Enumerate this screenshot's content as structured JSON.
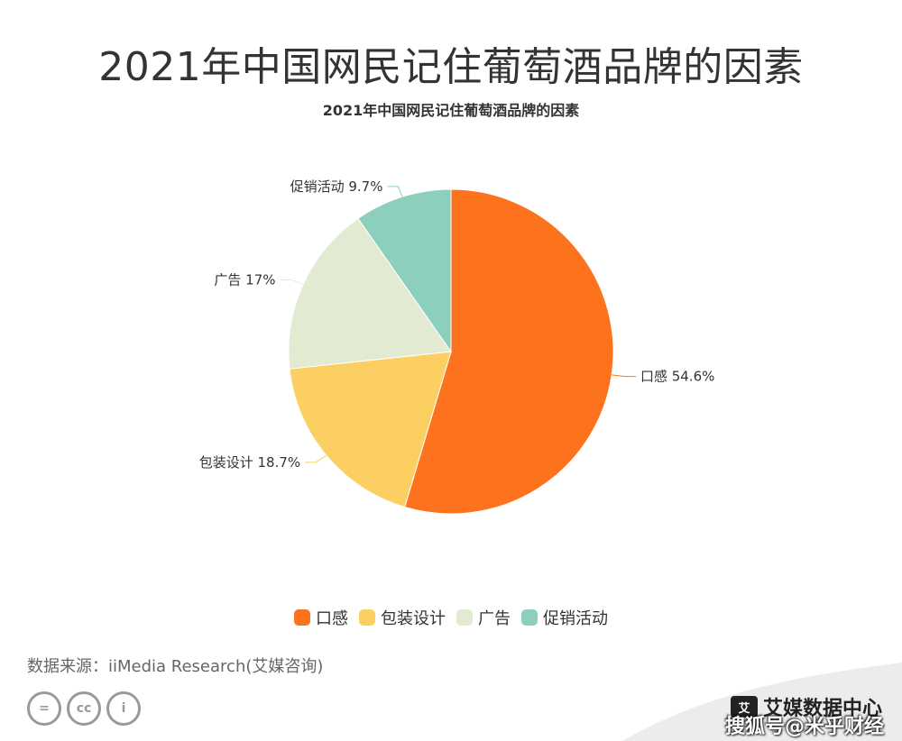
{
  "title": "2021年中国网民记住葡萄酒品牌的因素",
  "chart_data": {
    "type": "pie",
    "title": "2021年中国网民记住葡萄酒品牌的因素",
    "categories": [
      "口感",
      "包装设计",
      "广告",
      "促销活动"
    ],
    "values": [
      54.6,
      18.7,
      17,
      9.7
    ],
    "labels": [
      "口感 54.6%",
      "包装设计 18.7%",
      "广告 17%",
      "促销活动 9.7%"
    ],
    "colors": [
      "#fd731d",
      "#fccf63",
      "#e2ead2",
      "#8ccfbc"
    ],
    "legend_position": "bottom"
  },
  "source": "数据来源：iiMedia Research(艾媒咨询)",
  "license_icons": [
    "equal-icon",
    "cc-icon",
    "person-icon"
  ],
  "license_text": [
    "=",
    "cc",
    "i"
  ],
  "brand": {
    "logo_text": "艾",
    "name": "艾媒数据中心"
  },
  "watermark": "搜狐号@米乎财经"
}
